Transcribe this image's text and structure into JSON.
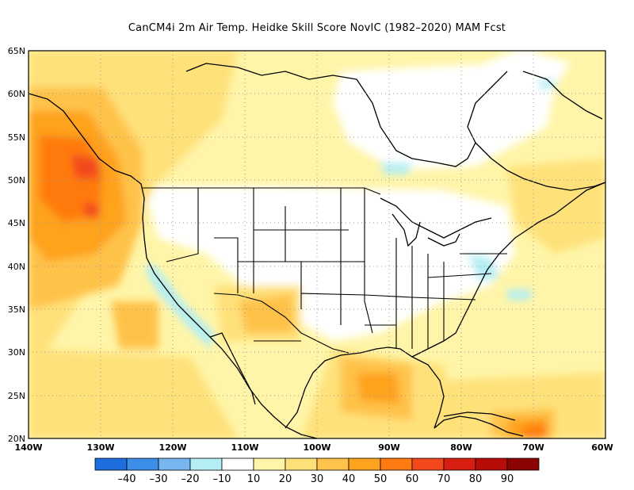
{
  "title": "CanCM4i  2m Air Temp. Heidke Skill Score NovIC (1982–2020) MAM Fcst",
  "lat_labels": [
    "65N",
    "60N",
    "55N",
    "50N",
    "45N",
    "40N",
    "35N",
    "30N",
    "25N",
    "20N"
  ],
  "lon_labels": [
    "140W",
    "130W",
    "120W",
    "110W",
    "100W",
    "90W",
    "80W",
    "70W",
    "60W"
  ],
  "colorbar": {
    "labels": [
      "–40",
      "–30",
      "–20",
      "–10",
      "10",
      "20",
      "30",
      "40",
      "50",
      "60",
      "70",
      "80",
      "90"
    ],
    "colors": [
      "#1e6ee0",
      "#3c8ee8",
      "#78b6f2",
      "#b4eef4",
      "#ffffff",
      "#fff5a8",
      "#ffe17a",
      "#ffc24a",
      "#ffa21e",
      "#ff7a10",
      "#f2481c",
      "#d81e10",
      "#b80c08",
      "#8c0404"
    ]
  },
  "regions": {
    "pacific_northwest_max": "60–70",
    "west_coast_min": "–20 to –10",
    "texas_gulf": "40–60",
    "caribbean": "50–60"
  }
}
